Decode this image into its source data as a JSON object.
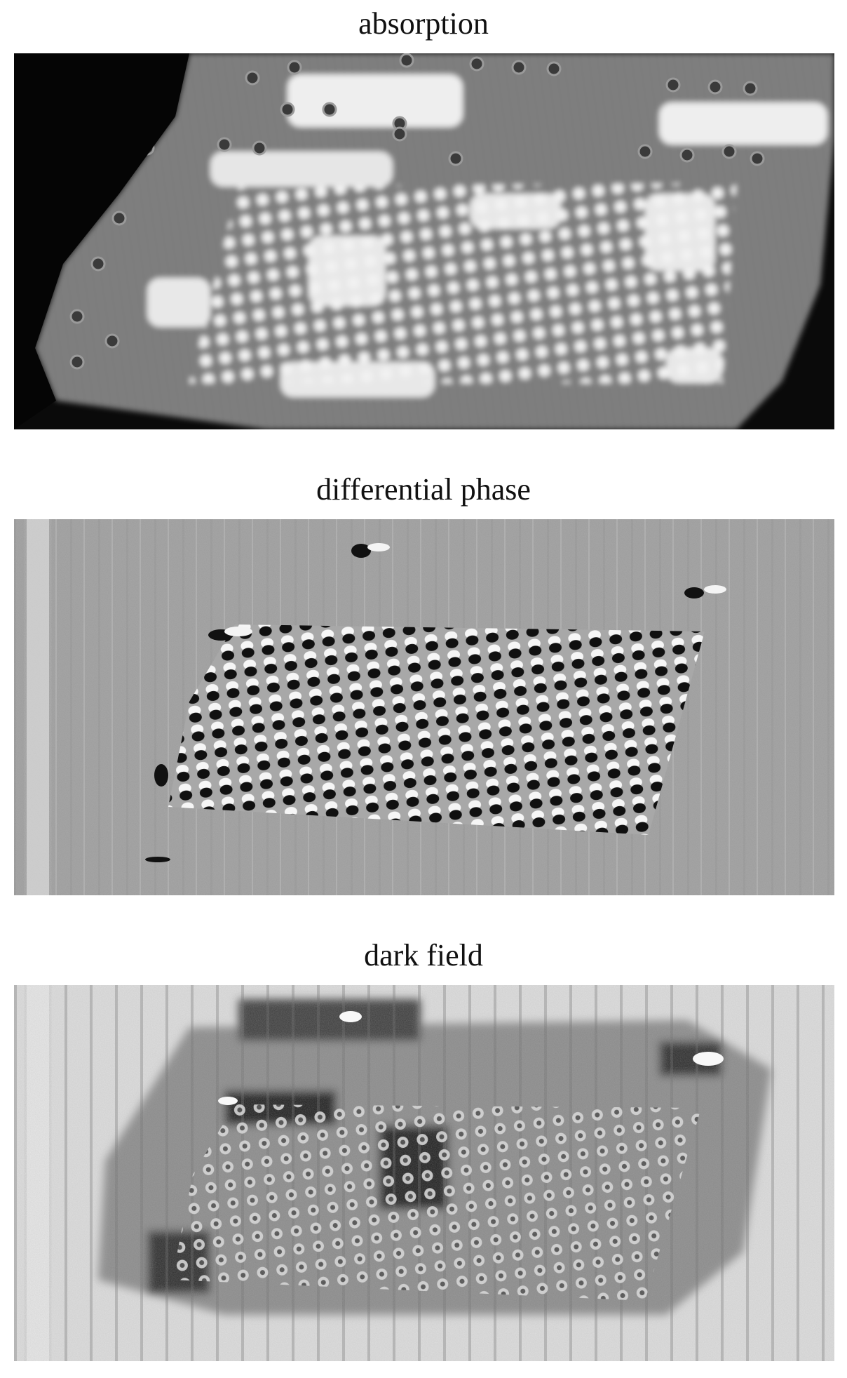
{
  "figure": {
    "panels": [
      {
        "title": "absorption"
      },
      {
        "title": "differential phase"
      },
      {
        "title": "dark field"
      }
    ]
  },
  "colors": {
    "background": "#ffffff",
    "text": "#111111"
  }
}
